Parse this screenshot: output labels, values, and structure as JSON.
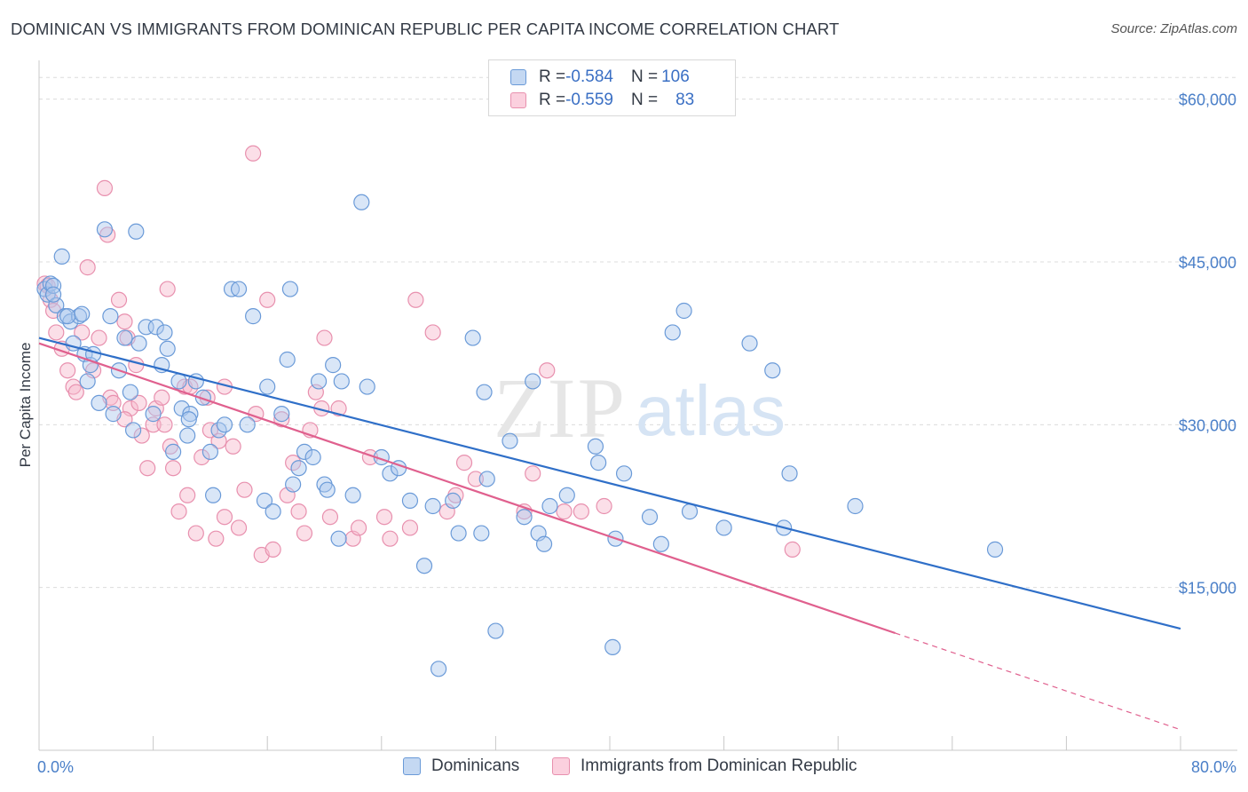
{
  "title": "DOMINICAN VS IMMIGRANTS FROM DOMINICAN REPUBLIC PER CAPITA INCOME CORRELATION CHART",
  "source": "Source: ZipAtlas.com",
  "watermark": {
    "zip": "ZIP",
    "atlas": "atlas"
  },
  "legend": {
    "rows": [
      {
        "r_label": "R = ",
        "r_value": "-0.584",
        "n_label": "N = ",
        "n_value": "106"
      },
      {
        "r_label": "R = ",
        "r_value": "-0.559",
        "n_label": "N = ",
        "n_value": "83"
      }
    ]
  },
  "colors": {
    "blue_fill": "#aac8ee",
    "blue_stroke": "#6a9ad8",
    "blue_line": "#2f6fc8",
    "pink_fill": "#f6b8cc",
    "pink_stroke": "#e890ae",
    "pink_line": "#e0608e",
    "grid": "#dcdcdc",
    "tick_label": "#4a7fc8"
  },
  "chart_data": {
    "type": "scatter",
    "title": "DOMINICAN VS IMMIGRANTS FROM DOMINICAN REPUBLIC PER CAPITA INCOME CORRELATION CHART",
    "xlabel": "",
    "ylabel": "Per Capita Income",
    "xlim": [
      0,
      80
    ],
    "ylim": [
      0,
      63000
    ],
    "x_tick_labels": [
      "0.0%",
      "80.0%"
    ],
    "y_ticks": [
      15000,
      30000,
      45000,
      60000
    ],
    "y_tick_labels": [
      "$15,000",
      "$30,000",
      "$45,000",
      "$60,000"
    ],
    "grid": true,
    "legend_placement": "top-center",
    "series": [
      {
        "name": "Dominicans",
        "r": -0.584,
        "n": 106,
        "trend": {
          "x0": 0,
          "y0": 38000,
          "x1": 80,
          "y1": 11200
        },
        "points": [
          [
            0.4,
            42500
          ],
          [
            0.6,
            42000
          ],
          [
            0.8,
            43000
          ],
          [
            1.0,
            42800
          ],
          [
            1.2,
            41000
          ],
          [
            1.6,
            45500
          ],
          [
            1.8,
            40000
          ],
          [
            2.2,
            39500
          ],
          [
            2.4,
            37500
          ],
          [
            2.8,
            40000
          ],
          [
            3.0,
            40200
          ],
          [
            3.2,
            36500
          ],
          [
            3.4,
            34000
          ],
          [
            3.6,
            35500
          ],
          [
            3.8,
            36500
          ],
          [
            4.2,
            32000
          ],
          [
            4.6,
            48000
          ],
          [
            5.0,
            40000
          ],
          [
            5.2,
            31000
          ],
          [
            5.6,
            35000
          ],
          [
            6.0,
            38000
          ],
          [
            6.4,
            33000
          ],
          [
            6.6,
            29500
          ],
          [
            6.8,
            47800
          ],
          [
            7.0,
            37500
          ],
          [
            7.5,
            39000
          ],
          [
            8.0,
            31000
          ],
          [
            8.2,
            39000
          ],
          [
            8.6,
            35500
          ],
          [
            8.8,
            38500
          ],
          [
            9.0,
            37000
          ],
          [
            9.4,
            27500
          ],
          [
            9.8,
            34000
          ],
          [
            10.0,
            31500
          ],
          [
            10.4,
            29000
          ],
          [
            10.6,
            31000
          ],
          [
            11.0,
            34000
          ],
          [
            11.5,
            32500
          ],
          [
            12.0,
            27500
          ],
          [
            12.2,
            23500
          ],
          [
            12.6,
            29500
          ],
          [
            13.0,
            30000
          ],
          [
            13.5,
            42500
          ],
          [
            14.0,
            42500
          ],
          [
            14.6,
            30000
          ],
          [
            15.0,
            40000
          ],
          [
            15.8,
            23000
          ],
          [
            16.0,
            33500
          ],
          [
            16.4,
            22000
          ],
          [
            17.0,
            31000
          ],
          [
            17.4,
            36000
          ],
          [
            17.6,
            42500
          ],
          [
            17.8,
            24500
          ],
          [
            18.2,
            26000
          ],
          [
            18.6,
            27500
          ],
          [
            19.2,
            27000
          ],
          [
            19.6,
            34000
          ],
          [
            20.0,
            24500
          ],
          [
            20.2,
            24000
          ],
          [
            20.6,
            35500
          ],
          [
            21.0,
            19500
          ],
          [
            21.2,
            34000
          ],
          [
            22.0,
            23500
          ],
          [
            22.6,
            50500
          ],
          [
            23.0,
            33500
          ],
          [
            24.0,
            27000
          ],
          [
            24.6,
            25500
          ],
          [
            25.2,
            26000
          ],
          [
            26.0,
            23000
          ],
          [
            27.0,
            17000
          ],
          [
            27.6,
            22500
          ],
          [
            28.0,
            7500
          ],
          [
            29.0,
            23000
          ],
          [
            29.4,
            20000
          ],
          [
            30.4,
            38000
          ],
          [
            31.0,
            20000
          ],
          [
            31.2,
            33000
          ],
          [
            31.4,
            25000
          ],
          [
            32.0,
            11000
          ],
          [
            33.0,
            28500
          ],
          [
            34.0,
            21500
          ],
          [
            34.6,
            34000
          ],
          [
            35.0,
            20000
          ],
          [
            35.4,
            19000
          ],
          [
            35.8,
            22500
          ],
          [
            37.0,
            23500
          ],
          [
            39.0,
            28000
          ],
          [
            39.2,
            26500
          ],
          [
            40.2,
            9500
          ],
          [
            40.4,
            19500
          ],
          [
            41.0,
            25500
          ],
          [
            42.8,
            21500
          ],
          [
            43.6,
            19000
          ],
          [
            44.4,
            38500
          ],
          [
            45.2,
            40500
          ],
          [
            45.6,
            22000
          ],
          [
            48.0,
            20500
          ],
          [
            49.8,
            37500
          ],
          [
            51.4,
            35000
          ],
          [
            52.2,
            20500
          ],
          [
            52.6,
            25500
          ],
          [
            57.2,
            22500
          ],
          [
            67.0,
            18500
          ],
          [
            1.0,
            42000
          ],
          [
            2.0,
            40000
          ],
          [
            10.5,
            30500
          ]
        ]
      },
      {
        "name": "Immigrants from Dominican Republic",
        "r": -0.559,
        "n": 83,
        "trend": {
          "x0": 0,
          "y0": 37500,
          "x1": 60,
          "y1": 10800
        },
        "trend_extension": {
          "x0": 60,
          "y0": 10800,
          "x1": 80,
          "y1": 1900
        },
        "points": [
          [
            0.4,
            43000
          ],
          [
            0.6,
            42800
          ],
          [
            0.8,
            41500
          ],
          [
            1.0,
            40500
          ],
          [
            1.2,
            38500
          ],
          [
            1.6,
            37000
          ],
          [
            2.0,
            35000
          ],
          [
            2.4,
            33500
          ],
          [
            2.6,
            33000
          ],
          [
            3.0,
            38500
          ],
          [
            3.4,
            44500
          ],
          [
            3.8,
            35000
          ],
          [
            4.2,
            38000
          ],
          [
            4.6,
            51800
          ],
          [
            4.8,
            47500
          ],
          [
            5.0,
            32500
          ],
          [
            5.2,
            32000
          ],
          [
            5.6,
            41500
          ],
          [
            6.0,
            39500
          ],
          [
            6.2,
            38000
          ],
          [
            6.4,
            31500
          ],
          [
            6.8,
            35500
          ],
          [
            7.0,
            32000
          ],
          [
            7.2,
            29000
          ],
          [
            7.6,
            26000
          ],
          [
            8.0,
            30000
          ],
          [
            8.2,
            31500
          ],
          [
            8.6,
            32500
          ],
          [
            8.8,
            30000
          ],
          [
            9.0,
            42500
          ],
          [
            9.2,
            28000
          ],
          [
            9.4,
            26000
          ],
          [
            9.8,
            22000
          ],
          [
            10.2,
            33500
          ],
          [
            10.4,
            23500
          ],
          [
            10.6,
            33500
          ],
          [
            11.0,
            20000
          ],
          [
            11.4,
            27000
          ],
          [
            11.8,
            32500
          ],
          [
            12.0,
            29500
          ],
          [
            12.4,
            19500
          ],
          [
            12.6,
            28500
          ],
          [
            13.0,
            21500
          ],
          [
            13.6,
            28000
          ],
          [
            14.0,
            20500
          ],
          [
            14.4,
            24000
          ],
          [
            15.0,
            55000
          ],
          [
            15.2,
            31000
          ],
          [
            15.6,
            18000
          ],
          [
            16.0,
            41500
          ],
          [
            16.4,
            18500
          ],
          [
            17.0,
            30500
          ],
          [
            17.4,
            23500
          ],
          [
            17.8,
            26500
          ],
          [
            18.2,
            22000
          ],
          [
            18.6,
            20000
          ],
          [
            19.0,
            29500
          ],
          [
            19.4,
            33000
          ],
          [
            19.8,
            31500
          ],
          [
            20.0,
            38000
          ],
          [
            20.4,
            21500
          ],
          [
            21.0,
            31500
          ],
          [
            22.0,
            19500
          ],
          [
            22.4,
            20500
          ],
          [
            23.2,
            27000
          ],
          [
            24.2,
            21500
          ],
          [
            24.6,
            19500
          ],
          [
            26.0,
            20500
          ],
          [
            26.4,
            41500
          ],
          [
            27.6,
            38500
          ],
          [
            28.6,
            22000
          ],
          [
            29.2,
            23500
          ],
          [
            29.8,
            26500
          ],
          [
            30.6,
            25000
          ],
          [
            34.0,
            22000
          ],
          [
            34.6,
            25500
          ],
          [
            35.6,
            35000
          ],
          [
            36.8,
            22000
          ],
          [
            38.0,
            22000
          ],
          [
            39.6,
            22500
          ],
          [
            52.8,
            18500
          ],
          [
            6.0,
            30500
          ],
          [
            13.0,
            33500
          ]
        ]
      }
    ]
  },
  "bottom_legend": [
    {
      "label": "Dominicans"
    },
    {
      "label": "Immigrants from Dominican Republic"
    }
  ]
}
